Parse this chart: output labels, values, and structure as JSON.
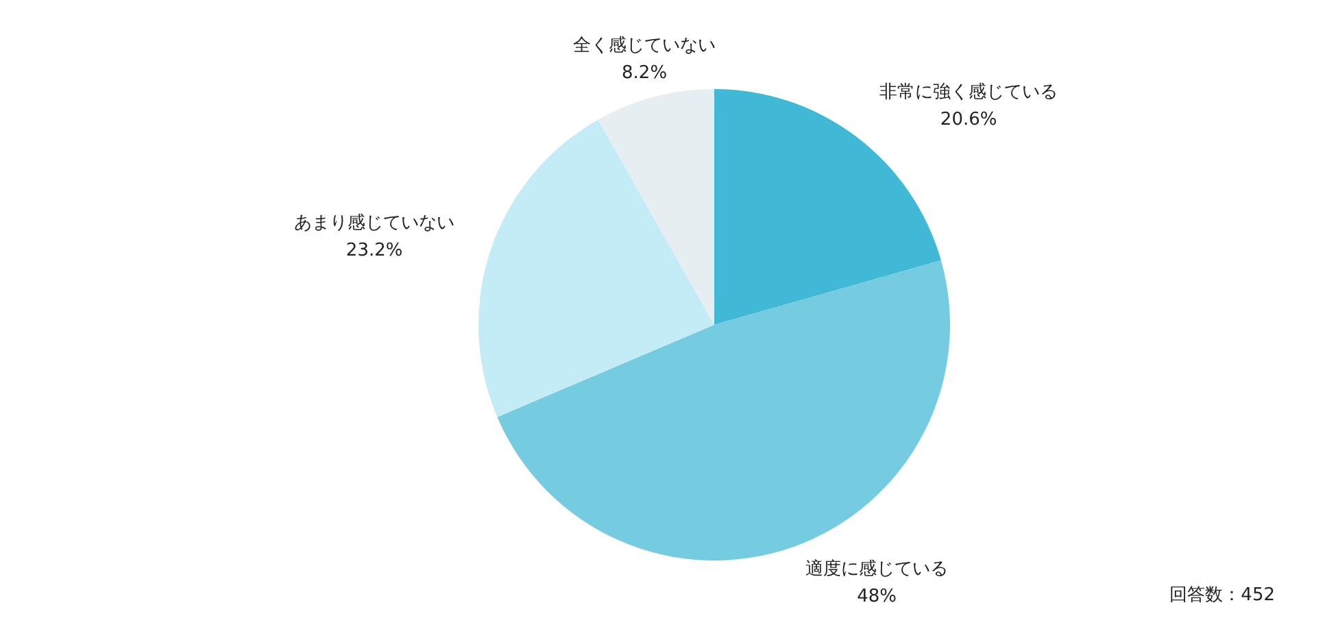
{
  "chart_data": {
    "type": "pie",
    "categories": [
      "非常に強く感じている",
      "適度に感じている",
      "あまり感じていない",
      "全く感じていない"
    ],
    "values": [
      20.6,
      48,
      23.2,
      8.2
    ],
    "colors": [
      "#42b8d7",
      "#75cbdf",
      "#c4ecf6",
      "#e6eef1"
    ],
    "value_labels": [
      "20.6%",
      "48%",
      "23.2%",
      "8.2%"
    ],
    "annotations": [
      "回答数：452"
    ]
  }
}
